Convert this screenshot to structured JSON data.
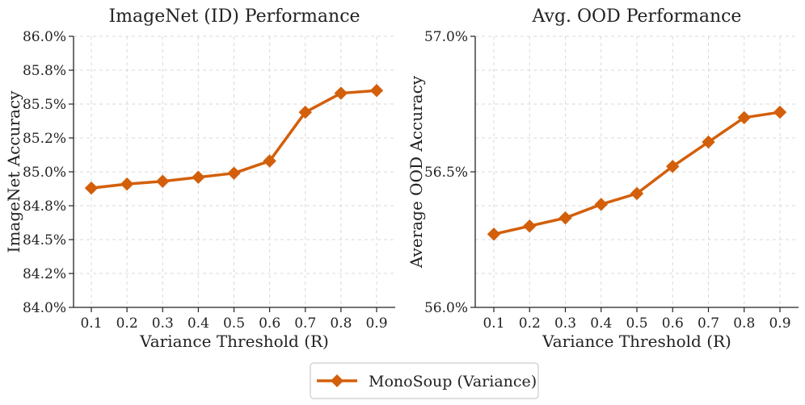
{
  "chart_data": [
    {
      "type": "line",
      "title": "ImageNet (ID) Performance",
      "xlabel": "Variance Threshold (R)",
      "ylabel": "ImageNet Accuracy",
      "x": [
        0.1,
        0.2,
        0.3,
        0.4,
        0.5,
        0.6,
        0.7,
        0.8,
        0.9
      ],
      "x_tick_labels": [
        "0.1",
        "0.2",
        "0.3",
        "0.4",
        "0.5",
        "0.6",
        "0.7",
        "0.8",
        "0.9"
      ],
      "ylim": [
        84.0,
        86.0
      ],
      "y_ticks": [
        84.0,
        84.25,
        84.5,
        84.75,
        85.0,
        85.25,
        85.5,
        85.75,
        86.0
      ],
      "y_tick_labels": [
        "84.0%",
        "84.2%",
        "84.5%",
        "84.8%",
        "85.0%",
        "85.2%",
        "85.5%",
        "85.8%",
        "86.0%"
      ],
      "grid": true,
      "series": [
        {
          "name": "MonoSoup (Variance)",
          "color": "#d35f0a",
          "marker": "diamond",
          "values": [
            84.88,
            84.91,
            84.93,
            84.96,
            84.99,
            85.08,
            85.44,
            85.58,
            85.6
          ]
        }
      ]
    },
    {
      "type": "line",
      "title": "Avg. OOD Performance",
      "xlabel": "Variance Threshold (R)",
      "ylabel": "Average OOD Accuracy",
      "x": [
        0.1,
        0.2,
        0.3,
        0.4,
        0.5,
        0.6,
        0.7,
        0.8,
        0.9
      ],
      "x_tick_labels": [
        "0.1",
        "0.2",
        "0.3",
        "0.4",
        "0.5",
        "0.6",
        "0.7",
        "0.8",
        "0.9"
      ],
      "ylim": [
        56.0,
        57.0
      ],
      "y_ticks": [
        56.0,
        56.5,
        57.0
      ],
      "y_tick_labels": [
        "56.0%",
        "56.5%",
        "57.0%"
      ],
      "y_grid_ticks": [
        56.0,
        56.125,
        56.25,
        56.375,
        56.5,
        56.625,
        56.75,
        56.875,
        57.0
      ],
      "grid": true,
      "series": [
        {
          "name": "MonoSoup (Variance)",
          "color": "#d35f0a",
          "marker": "diamond",
          "values": [
            56.27,
            56.3,
            56.33,
            56.38,
            56.42,
            56.52,
            56.61,
            56.7,
            56.72
          ]
        }
      ]
    }
  ],
  "legend": {
    "label": "MonoSoup (Variance)",
    "placement": "bottom-center"
  }
}
